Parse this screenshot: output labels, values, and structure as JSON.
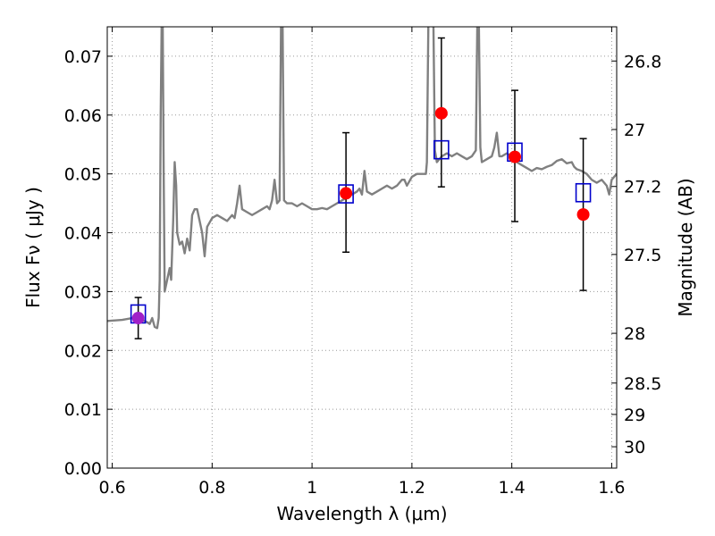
{
  "chart_data": {
    "type": "scatter",
    "title": "",
    "xlabel": "Wavelength  λ (μm)",
    "ylabel": "Flux  Fν ( μJy )",
    "y2label": "Magnitude (AB)",
    "xlim": [
      0.59,
      1.61
    ],
    "ylim": [
      0.0,
      0.075
    ],
    "grid": true,
    "x_ticks": [
      0.6,
      0.8,
      1.0,
      1.2,
      1.4,
      1.6
    ],
    "x_tick_labels": [
      "0.6",
      "0.8",
      "1",
      "1.2",
      "1.4",
      "1.6"
    ],
    "y_ticks": [
      0.0,
      0.01,
      0.02,
      0.03,
      0.04,
      0.05,
      0.06,
      0.07
    ],
    "y_tick_labels": [
      "0.00",
      "0.01",
      "0.02",
      "0.03",
      "0.04",
      "0.05",
      "0.06",
      "0.07"
    ],
    "y2_ticks": [
      26.8,
      27,
      27.2,
      27.5,
      28,
      28.5,
      29,
      30
    ],
    "y2_tick_labels": [
      "26.8",
      "27",
      "27.2",
      "27.5",
      "28",
      "28.5",
      "29",
      "30"
    ],
    "colors": {
      "model": "#808080",
      "observed": "#ff0000",
      "observed_first": "#a020c8",
      "model_box": "#0000cc",
      "errorbar": "#000000",
      "grid": "#999999"
    },
    "series": [
      {
        "type": "line",
        "points": [
          [
            0.59,
            0.025
          ],
          [
            0.62,
            0.0252
          ],
          [
            0.64,
            0.0255
          ],
          [
            0.66,
            0.0252
          ],
          [
            0.67,
            0.0248
          ],
          [
            0.675,
            0.0245
          ],
          [
            0.68,
            0.0255
          ],
          [
            0.685,
            0.024
          ],
          [
            0.69,
            0.0238
          ],
          [
            0.693,
            0.0255
          ],
          [
            0.695,
            0.032
          ],
          [
            0.697,
            0.06
          ],
          [
            0.699,
            0.076
          ],
          [
            0.701,
            0.076
          ],
          [
            0.703,
            0.05
          ],
          [
            0.705,
            0.03
          ],
          [
            0.71,
            0.032
          ],
          [
            0.715,
            0.034
          ],
          [
            0.718,
            0.032
          ],
          [
            0.722,
            0.042
          ],
          [
            0.725,
            0.052
          ],
          [
            0.728,
            0.048
          ],
          [
            0.73,
            0.04
          ],
          [
            0.735,
            0.038
          ],
          [
            0.74,
            0.0385
          ],
          [
            0.745,
            0.0365
          ],
          [
            0.75,
            0.039
          ],
          [
            0.755,
            0.037
          ],
          [
            0.76,
            0.043
          ],
          [
            0.765,
            0.044
          ],
          [
            0.77,
            0.044
          ],
          [
            0.775,
            0.042
          ],
          [
            0.78,
            0.04
          ],
          [
            0.785,
            0.036
          ],
          [
            0.79,
            0.041
          ],
          [
            0.8,
            0.0425
          ],
          [
            0.81,
            0.043
          ],
          [
            0.82,
            0.0425
          ],
          [
            0.83,
            0.042
          ],
          [
            0.84,
            0.043
          ],
          [
            0.845,
            0.0425
          ],
          [
            0.85,
            0.045
          ],
          [
            0.855,
            0.048
          ],
          [
            0.86,
            0.044
          ],
          [
            0.87,
            0.0435
          ],
          [
            0.88,
            0.043
          ],
          [
            0.89,
            0.0435
          ],
          [
            0.9,
            0.044
          ],
          [
            0.91,
            0.0445
          ],
          [
            0.915,
            0.044
          ],
          [
            0.92,
            0.0455
          ],
          [
            0.925,
            0.049
          ],
          [
            0.93,
            0.045
          ],
          [
            0.935,
            0.0455
          ],
          [
            0.938,
            0.076
          ],
          [
            0.941,
            0.076
          ],
          [
            0.944,
            0.0455
          ],
          [
            0.95,
            0.045
          ],
          [
            0.96,
            0.045
          ],
          [
            0.97,
            0.0445
          ],
          [
            0.98,
            0.045
          ],
          [
            0.99,
            0.0445
          ],
          [
            1.0,
            0.044
          ],
          [
            1.01,
            0.044
          ],
          [
            1.02,
            0.0442
          ],
          [
            1.03,
            0.044
          ],
          [
            1.04,
            0.0445
          ],
          [
            1.05,
            0.045
          ],
          [
            1.06,
            0.0455
          ],
          [
            1.07,
            0.046
          ],
          [
            1.08,
            0.0465
          ],
          [
            1.09,
            0.047
          ],
          [
            1.095,
            0.0475
          ],
          [
            1.1,
            0.0465
          ],
          [
            1.105,
            0.0505
          ],
          [
            1.11,
            0.047
          ],
          [
            1.12,
            0.0465
          ],
          [
            1.13,
            0.047
          ],
          [
            1.14,
            0.0475
          ],
          [
            1.15,
            0.048
          ],
          [
            1.16,
            0.0475
          ],
          [
            1.17,
            0.048
          ],
          [
            1.18,
            0.049
          ],
          [
            1.185,
            0.049
          ],
          [
            1.19,
            0.048
          ],
          [
            1.2,
            0.0495
          ],
          [
            1.21,
            0.05
          ],
          [
            1.22,
            0.05
          ],
          [
            1.228,
            0.05
          ],
          [
            1.23,
            0.052
          ],
          [
            1.233,
            0.076
          ],
          [
            1.243,
            0.076
          ],
          [
            1.246,
            0.054
          ],
          [
            1.25,
            0.052
          ],
          [
            1.255,
            0.0525
          ],
          [
            1.26,
            0.053
          ],
          [
            1.27,
            0.0535
          ],
          [
            1.28,
            0.053
          ],
          [
            1.29,
            0.0535
          ],
          [
            1.3,
            0.053
          ],
          [
            1.31,
            0.0525
          ],
          [
            1.32,
            0.053
          ],
          [
            1.328,
            0.054
          ],
          [
            1.331,
            0.076
          ],
          [
            1.334,
            0.076
          ],
          [
            1.337,
            0.0545
          ],
          [
            1.34,
            0.052
          ],
          [
            1.35,
            0.0525
          ],
          [
            1.36,
            0.053
          ],
          [
            1.365,
            0.0545
          ],
          [
            1.37,
            0.057
          ],
          [
            1.375,
            0.053
          ],
          [
            1.38,
            0.053
          ],
          [
            1.39,
            0.0535
          ],
          [
            1.4,
            0.053
          ],
          [
            1.41,
            0.052
          ],
          [
            1.42,
            0.0515
          ],
          [
            1.43,
            0.051
          ],
          [
            1.44,
            0.0505
          ],
          [
            1.45,
            0.051
          ],
          [
            1.46,
            0.0508
          ],
          [
            1.47,
            0.0512
          ],
          [
            1.48,
            0.0515
          ],
          [
            1.49,
            0.0522
          ],
          [
            1.5,
            0.0525
          ],
          [
            1.51,
            0.0518
          ],
          [
            1.52,
            0.052
          ],
          [
            1.525,
            0.0512
          ],
          [
            1.53,
            0.0508
          ],
          [
            1.54,
            0.0505
          ],
          [
            1.55,
            0.05
          ],
          [
            1.56,
            0.049
          ],
          [
            1.57,
            0.0485
          ],
          [
            1.58,
            0.049
          ],
          [
            1.59,
            0.048
          ],
          [
            1.595,
            0.0465
          ],
          [
            1.6,
            0.049
          ],
          [
            1.61,
            0.05
          ]
        ]
      },
      {
        "type": "errorbar-points",
        "points": [
          {
            "x": 0.652,
            "y": 0.0255,
            "yerr_low": 0.022,
            "yerr_high": 0.029
          },
          {
            "x": 1.068,
            "y": 0.0467,
            "yerr_low": 0.0367,
            "yerr_high": 0.057
          },
          {
            "x": 1.259,
            "y": 0.0603,
            "yerr_low": 0.0478,
            "yerr_high": 0.0731
          },
          {
            "x": 1.406,
            "y": 0.0529,
            "yerr_low": 0.0419,
            "yerr_high": 0.0642
          },
          {
            "x": 1.543,
            "y": 0.0431,
            "yerr_low": 0.0302,
            "yerr_high": 0.056
          }
        ]
      },
      {
        "type": "box-markers",
        "points": [
          {
            "x": 0.652,
            "y": 0.0262
          },
          {
            "x": 1.068,
            "y": 0.0466
          },
          {
            "x": 1.259,
            "y": 0.0541
          },
          {
            "x": 1.406,
            "y": 0.0537
          },
          {
            "x": 1.543,
            "y": 0.0468
          }
        ]
      }
    ]
  }
}
